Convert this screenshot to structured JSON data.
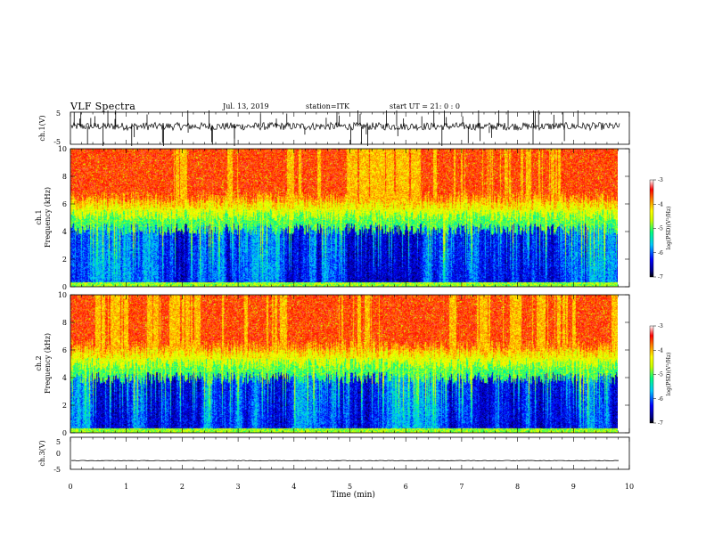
{
  "header": {
    "title": "VLF Spectra",
    "date": "Jul. 13, 2019",
    "station": "station=ITK",
    "start": "start UT = 21: 0 : 0"
  },
  "chart_data": [
    {
      "type": "line",
      "name": "ch1-waveform",
      "ylabel": "ch.1(V)",
      "ylim": [
        -5,
        5
      ],
      "yticks": [
        5,
        -5
      ],
      "x_range": [
        0,
        10
      ],
      "trace_from_min": 0,
      "trace_to_min": 9.83,
      "baseline_v": 0.6,
      "noise_amplitude_v": 1.2,
      "spike_count": 60
    },
    {
      "type": "heatmap",
      "name": "ch1-spectrogram",
      "ylabel": "ch.1\nFrequency (kHz)",
      "ylim": [
        0,
        10
      ],
      "yticks": [
        0,
        2,
        4,
        6,
        8,
        10
      ],
      "x_range": [
        0,
        10
      ],
      "data_until_min": 9.83,
      "colorbar": {
        "label": "log(PSD)(V²/Hz)",
        "range": [
          -7,
          -3
        ],
        "ticks": [
          "-3",
          "-4",
          "-5",
          "-6",
          "-7"
        ]
      },
      "band_kHz": {
        "dark_max": 4.2,
        "green_band": 5.2,
        "yellow_band": 6.0,
        "red_above": 6.5
      }
    },
    {
      "type": "heatmap",
      "name": "ch2-spectrogram",
      "ylabel": "ch.2\nFrequency (kHz)",
      "ylim": [
        0,
        10
      ],
      "yticks": [
        0,
        2,
        4,
        6,
        8,
        10
      ],
      "x_range": [
        0,
        10
      ],
      "data_until_min": 9.83,
      "colorbar": {
        "label": "log(PSD)(V²/Hz)",
        "range": [
          -7,
          -3
        ],
        "ticks": [
          "-3",
          "-4",
          "-5",
          "-6",
          "-7"
        ]
      },
      "band_kHz": {
        "dark_max": 4.0,
        "green_band": 5.0,
        "yellow_band": 5.8,
        "red_above": 6.3
      }
    },
    {
      "type": "line",
      "name": "ch3-waveform",
      "ylabel": "ch.3(V)",
      "ylim": [
        -5,
        5
      ],
      "yticks": [
        5,
        0,
        -5
      ],
      "x_range": [
        0,
        10
      ],
      "trace_from_min": 0,
      "trace_to_min": 9.83,
      "baseline_v": -2.3
    }
  ],
  "xaxis": {
    "label": "Time (min)",
    "ticks": [
      "0",
      "1",
      "2",
      "3",
      "4",
      "5",
      "6",
      "7",
      "8",
      "9",
      "10"
    ]
  }
}
